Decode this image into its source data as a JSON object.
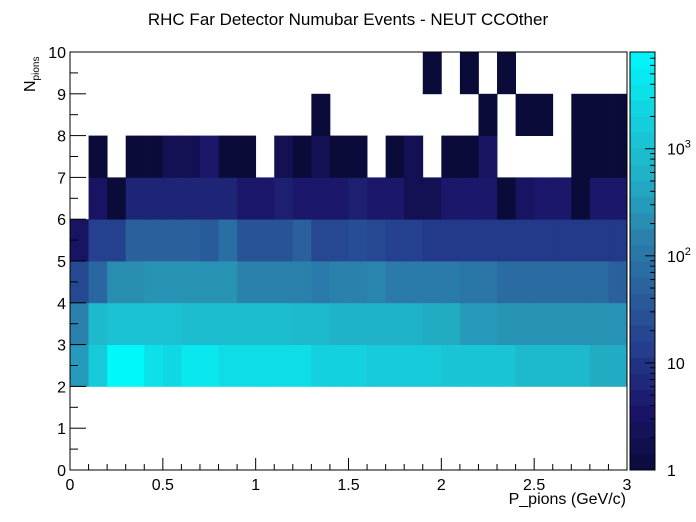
{
  "chart_data": {
    "type": "heatmap",
    "title": "RHC Far Detector Numubar Events - NEUT CCOther",
    "xlabel": "P_pions (GeV/c)",
    "ylabel": {
      "main": "N",
      "sub": "pions"
    },
    "xlim": [
      0,
      3
    ],
    "ylim": [
      0,
      10
    ],
    "x_ticks": [
      "0",
      "0.5",
      "1",
      "1.5",
      "2",
      "2.5",
      "3"
    ],
    "y_ticks": [
      "0",
      "1",
      "2",
      "3",
      "4",
      "5",
      "6",
      "7",
      "8",
      "9",
      "10"
    ],
    "z_scale": "log",
    "zlim": [
      1,
      8000
    ],
    "colorbar_labels": [
      {
        "value": 1,
        "text": "1"
      },
      {
        "value": 10,
        "text": "10"
      },
      {
        "value": 100,
        "base": "10",
        "exp": "2"
      },
      {
        "value": 1000,
        "base": "10",
        "exp": "3"
      }
    ],
    "palette": [
      "#0b0b3a",
      "#1a1568",
      "#243c8c",
      "#2a5f9c",
      "#2a86ae",
      "#20b3c8",
      "#12d4e0",
      "#00f8fa"
    ],
    "bin_edges_x": [
      0,
      0.1,
      0.2,
      0.3,
      0.4,
      0.5,
      0.6,
      0.7,
      0.8,
      0.9,
      1.0,
      1.1,
      1.2,
      1.3,
      1.4,
      1.5,
      1.6,
      1.7,
      1.8,
      1.9,
      2.0,
      2.1,
      2.2,
      2.3,
      2.4,
      2.5,
      2.6,
      2.7,
      2.8,
      2.9,
      3.0
    ],
    "bin_edges_y": [
      2,
      3,
      4,
      5,
      6,
      7,
      8,
      9,
      10
    ],
    "z_rows_from_y2": [
      [
        300,
        1500,
        8000,
        8000,
        3500,
        2500,
        4500,
        4500,
        3000,
        3000,
        3000,
        3000,
        3000,
        2000,
        2000,
        2000,
        1500,
        1500,
        1500,
        1500,
        1200,
        1200,
        1200,
        1200,
        800,
        800,
        800,
        800,
        500,
        500
      ],
      [
        150,
        800,
        1100,
        1100,
        1100,
        1100,
        900,
        900,
        900,
        900,
        900,
        900,
        800,
        800,
        600,
        600,
        600,
        600,
        600,
        500,
        500,
        300,
        300,
        250,
        250,
        250,
        250,
        250,
        250,
        250
      ],
      [
        20,
        60,
        200,
        200,
        250,
        250,
        250,
        250,
        250,
        150,
        150,
        150,
        150,
        120,
        150,
        150,
        170,
        120,
        120,
        120,
        120,
        100,
        100,
        70,
        70,
        70,
        70,
        70,
        70,
        50
      ],
      [
        3,
        15,
        15,
        50,
        50,
        50,
        50,
        40,
        80,
        30,
        30,
        30,
        50,
        20,
        20,
        25,
        20,
        15,
        15,
        12,
        12,
        12,
        12,
        12,
        12,
        12,
        12,
        12,
        12,
        12
      ],
      [
        0,
        3,
        1,
        6,
        6,
        6,
        6,
        6,
        6,
        4,
        4,
        5,
        4,
        4,
        4,
        5,
        4,
        4,
        2,
        2,
        4,
        4,
        4,
        1,
        3,
        4,
        4,
        1,
        4,
        4
      ],
      [
        0,
        1,
        0,
        1,
        1,
        2,
        2,
        4,
        1,
        1,
        0,
        2,
        1,
        2,
        1,
        1,
        0,
        1,
        2,
        0,
        1,
        1,
        3,
        0,
        0,
        0,
        0,
        1,
        1,
        1
      ],
      [
        0,
        0,
        0,
        0,
        0,
        0,
        0,
        0,
        0,
        0,
        0,
        0,
        0,
        1,
        0,
        0,
        0,
        0,
        0,
        0,
        0,
        0,
        1,
        0,
        1,
        1,
        0,
        1,
        1,
        1
      ],
      [
        0,
        0,
        0,
        0,
        0,
        0,
        0,
        0,
        0,
        0,
        0,
        0,
        0,
        0,
        0,
        0,
        0,
        0,
        0,
        1,
        0,
        1,
        0,
        1,
        0,
        0,
        0,
        0,
        0,
        0
      ]
    ]
  }
}
